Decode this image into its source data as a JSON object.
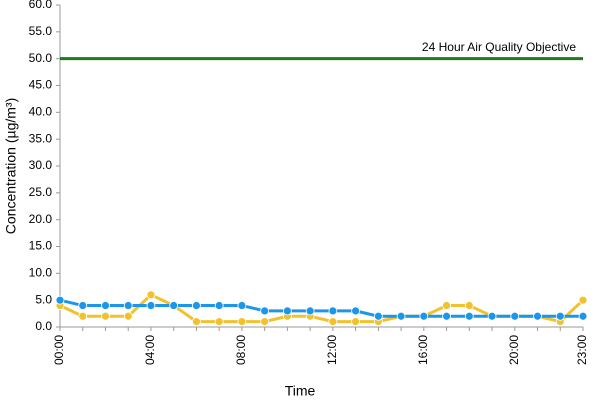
{
  "chart_data": {
    "type": "line",
    "x_label": "Time",
    "y_label": "Concentration (µg/m³)",
    "categories": [
      "00:00",
      null,
      null,
      null,
      "04:00",
      null,
      null,
      null,
      "08:00",
      null,
      null,
      null,
      "12:00",
      null,
      null,
      null,
      "16:00",
      null,
      null,
      null,
      "20:00",
      null,
      null,
      "23:00"
    ],
    "series": [
      {
        "color": "#f2c12e",
        "values": [
          4,
          2,
          2,
          2,
          6,
          4,
          1,
          1,
          1,
          1,
          2,
          2,
          1,
          1,
          1,
          2,
          2,
          4,
          4,
          2,
          2,
          2,
          1,
          5
        ]
      },
      {
        "color": "#1b96e8",
        "values": [
          5,
          4,
          4,
          4,
          4,
          4,
          4,
          4,
          4,
          3,
          3,
          3,
          3,
          3,
          2,
          2,
          2,
          2,
          2,
          2,
          2,
          2,
          2,
          2
        ]
      }
    ],
    "objective": {
      "value": 50,
      "label": "24 Hour Air Quality Objective",
      "color": "#1f7a1f"
    },
    "ylim": [
      0,
      60
    ],
    "yticks": [
      {
        "value": 0,
        "label": "0.0"
      },
      {
        "value": 5,
        "label": "5.0"
      },
      {
        "value": 10,
        "label": "10.0"
      },
      {
        "value": 15,
        "label": "15.0"
      },
      {
        "value": 20,
        "label": "20.0"
      },
      {
        "value": 25,
        "label": "25.0"
      },
      {
        "value": 30,
        "label": "30.0"
      },
      {
        "value": 35,
        "label": "35.0"
      },
      {
        "value": 40,
        "label": "40.0"
      },
      {
        "value": 45,
        "label": "45.0"
      },
      {
        "value": 50,
        "label": "50.0"
      },
      {
        "value": 55,
        "label": "55.0"
      },
      {
        "value": 60,
        "label": "60.0"
      }
    ],
    "grid": false
  }
}
